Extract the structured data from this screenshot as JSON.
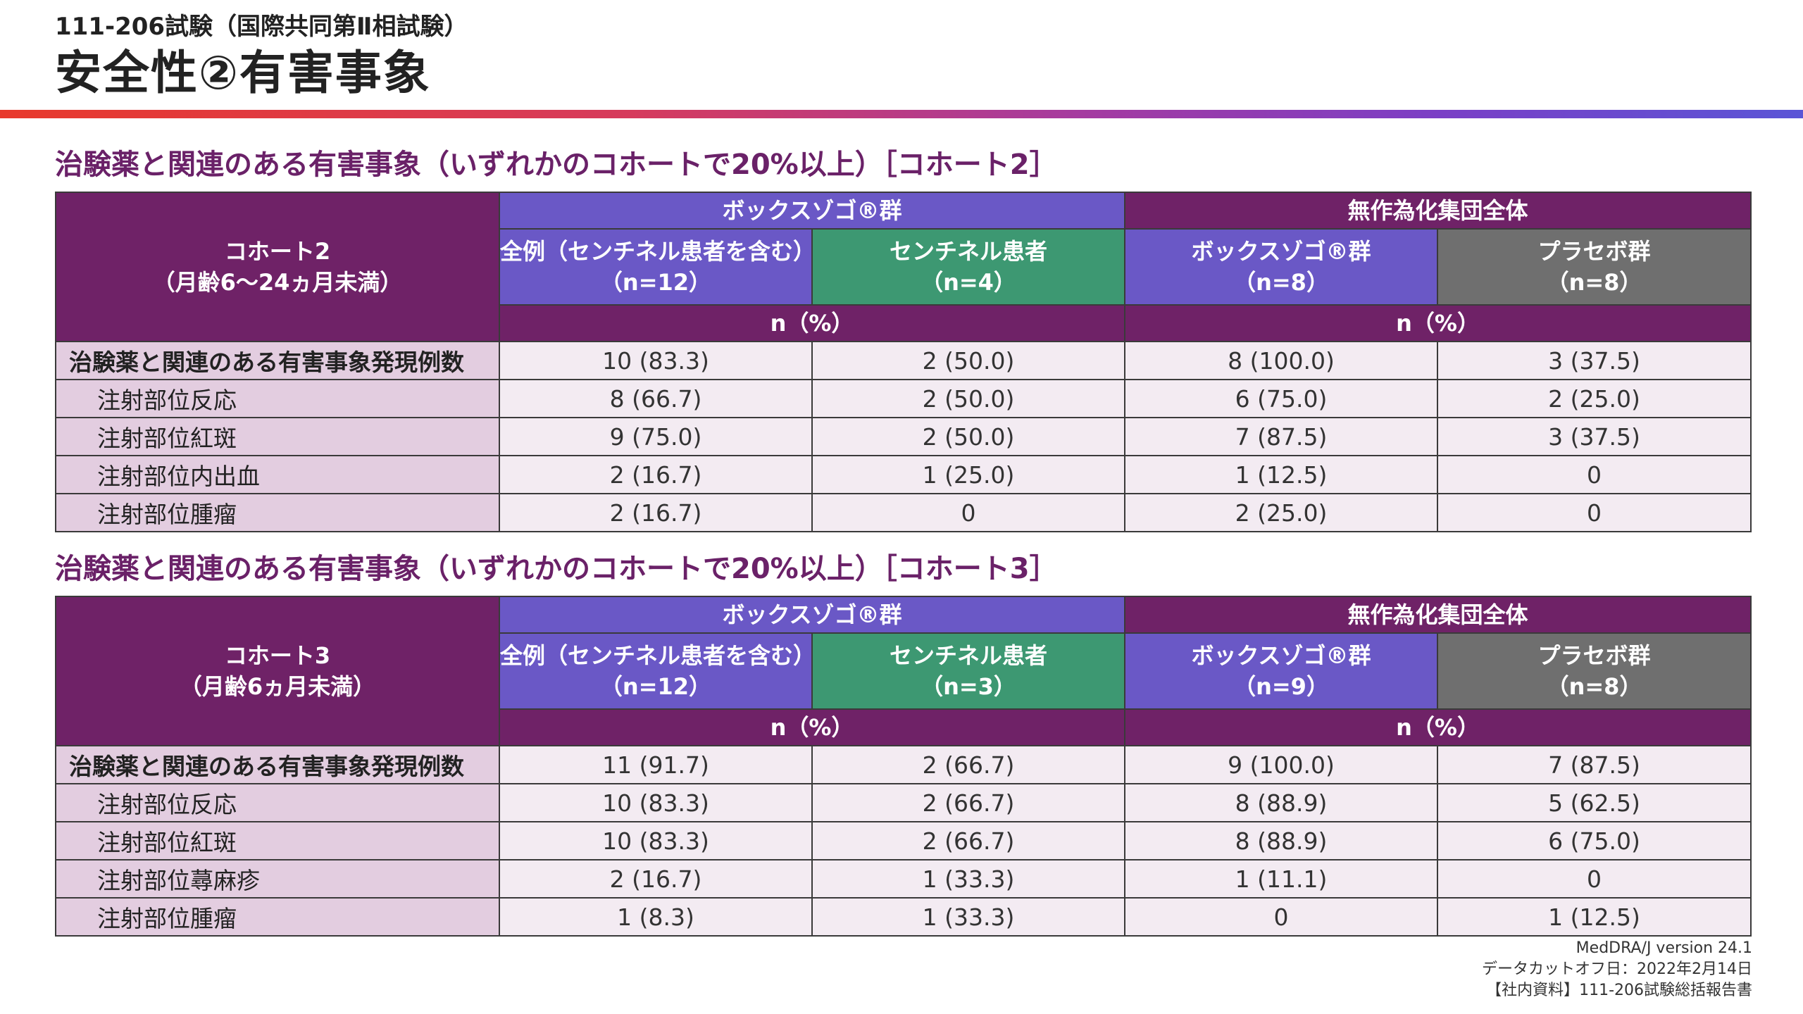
{
  "header": {
    "subtitle": "111-206試験（国際共同第Ⅱ相試験）",
    "title": "安全性②有害事象"
  },
  "tables": [
    {
      "section_title": "治験薬と関連のある有害事象（いずれかのコホートで20%以上）［コホート2］",
      "cohort_label": "コホート2",
      "cohort_age": "（月齢6～24ヵ月未満）",
      "group_left": "ボックスゾゴ®群",
      "group_right": "無作為化集団全体",
      "col1_name": "全例（センチネル患者を含む）",
      "col1_n": "（n=12）",
      "col2_name": "センチネル患者",
      "col2_n": "（n=4）",
      "col3_name": "ボックスゾゴ®群",
      "col3_n": "（n=8）",
      "col4_name": "プラセボ群",
      "col4_n": "（n=8）",
      "unit_left": "n（%）",
      "unit_right": "n（%）",
      "rows": [
        {
          "label": "治験薬と関連のある有害事象発現例数",
          "values": [
            "10 (83.3)",
            "2 (50.0)",
            "8 (100.0)",
            "3 (37.5)"
          ]
        },
        {
          "label": "注射部位反応",
          "values": [
            "8 (66.7)",
            "2 (50.0)",
            "6 (75.0)",
            "2 (25.0)"
          ]
        },
        {
          "label": "注射部位紅斑",
          "values": [
            "9 (75.0)",
            "2 (50.0)",
            "7 (87.5)",
            "3 (37.5)"
          ]
        },
        {
          "label": "注射部位内出血",
          "values": [
            "2 (16.7)",
            "1 (25.0)",
            "1 (12.5)",
            "0"
          ]
        },
        {
          "label": "注射部位腫瘤",
          "values": [
            "2 (16.7)",
            "0",
            "2 (25.0)",
            "0"
          ]
        }
      ]
    },
    {
      "section_title": "治験薬と関連のある有害事象（いずれかのコホートで20%以上）［コホート3］",
      "cohort_label": "コホート3",
      "cohort_age": "（月齢6ヵ月未満）",
      "group_left": "ボックスゾゴ®群",
      "group_right": "無作為化集団全体",
      "col1_name": "全例（センチネル患者を含む）",
      "col1_n": "（n=12）",
      "col2_name": "センチネル患者",
      "col2_n": "（n=3）",
      "col3_name": "ボックスゾゴ®群",
      "col3_n": "（n=9）",
      "col4_name": "プラセボ群",
      "col4_n": "（n=8）",
      "unit_left": "n（%）",
      "unit_right": "n（%）",
      "rows": [
        {
          "label": "治験薬と関連のある有害事象発現例数",
          "values": [
            "11 (91.7)",
            "2 (66.7)",
            "9 (100.0)",
            "7 (87.5)"
          ]
        },
        {
          "label": "注射部位反応",
          "values": [
            "10 (83.3)",
            "2 (66.7)",
            "8 (88.9)",
            "5 (62.5)"
          ]
        },
        {
          "label": "注射部位紅斑",
          "values": [
            "10 (83.3)",
            "2 (66.7)",
            "8 (88.9)",
            "6 (75.0)"
          ]
        },
        {
          "label": "注射部位蕁麻疹",
          "values": [
            "2 (16.7)",
            "1 (33.3)",
            "1 (11.1)",
            "0"
          ]
        },
        {
          "label": "注射部位腫瘤",
          "values": [
            "1 (8.3)",
            "1 (33.3)",
            "0",
            "1 (12.5)"
          ]
        }
      ]
    }
  ],
  "footnotes": {
    "line1": "MedDRA/J version 24.1",
    "line2": "データカットオフ日：2022年2月14日",
    "line3": "【社内資料】111-206試験総括報告書"
  },
  "colors": {
    "purple": "#6f2267",
    "blue": "#6a58c6",
    "green": "#3d9872",
    "gray": "#6f6f6f",
    "label_bg": "#e3cde0",
    "cell_bg": "#f3ebf2"
  }
}
